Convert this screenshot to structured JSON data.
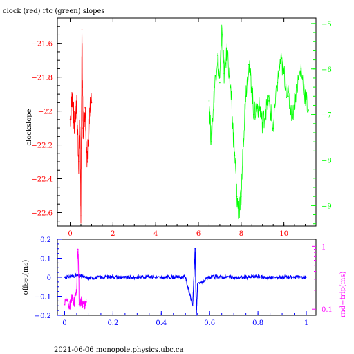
{
  "title": "clock (red) rtc (green) slopes",
  "footer": "2021-06-06  monopole.physics.ubc.ca",
  "colors": {
    "red": "#ff0000",
    "green": "#00ff00",
    "blue": "#0000ff",
    "magenta": "#ff00ff",
    "axis": "#000000"
  },
  "chart_data": [
    {
      "type": "line",
      "ylabel": "clockslope",
      "xlim": [
        -0.6,
        11.5
      ],
      "ylim": [
        -22.68,
        -21.45
      ],
      "x_ticks": [
        "0",
        "2",
        "4",
        "6",
        "8",
        "10"
      ],
      "left_ticks": [
        "-21.6",
        "-21.8",
        "-22",
        "-22.2",
        "-22.4",
        "-22.6"
      ],
      "right_ticks": [
        "-5",
        "-6",
        "-7",
        "-8",
        "-9"
      ],
      "right_ylim": [
        -9.45,
        -4.88
      ],
      "series": [
        {
          "color": "red",
          "axis": "left",
          "x": [
            0.0,
            0.1,
            0.2,
            0.3,
            0.4,
            0.45,
            0.5,
            0.55,
            0.6,
            0.7,
            0.8,
            0.9,
            1.0
          ],
          "y": [
            -22.05,
            -21.9,
            -22.1,
            -21.95,
            -22.3,
            -22.0,
            -22.62,
            -21.52,
            -22.1,
            -21.98,
            -22.3,
            -22.0,
            -21.95
          ]
        },
        {
          "color": "green",
          "axis": "right",
          "x": [
            6.5,
            6.6,
            6.75,
            6.9,
            7.0,
            7.1,
            7.2,
            7.35,
            7.5,
            7.6,
            7.7,
            7.8,
            7.9,
            8.0,
            8.1,
            8.2,
            8.35,
            8.5,
            8.6,
            8.75,
            8.9,
            9.0,
            9.15,
            9.3,
            9.5,
            9.7,
            9.85,
            10.0,
            10.2,
            10.4,
            10.6,
            10.8,
            11.0,
            11.15
          ],
          "y": [
            -6.7,
            -7.6,
            -6.4,
            -5.7,
            -6.3,
            -5.1,
            -6.1,
            -5.6,
            -6.4,
            -7.2,
            -7.9,
            -8.8,
            -9.2,
            -8.8,
            -7.6,
            -6.6,
            -5.9,
            -6.4,
            -7.0,
            -6.8,
            -6.9,
            -7.2,
            -6.9,
            -6.7,
            -7.3,
            -6.3,
            -5.8,
            -6.1,
            -6.6,
            -7.0,
            -6.4,
            -6.0,
            -6.6,
            -6.9
          ]
        }
      ]
    },
    {
      "type": "scatter",
      "ylabel": "offset(ms)",
      "right_ylabel": "rnd−trip(ms)",
      "xlim": [
        -0.03,
        1.04
      ],
      "ylim": [
        -0.2,
        0.2
      ],
      "x_ticks": [
        "0",
        "0.2",
        "0.4",
        "0.6",
        "0.8",
        "1"
      ],
      "left_ticks": [
        "0.2",
        "0.1",
        "0",
        "-0.1",
        "-0.2"
      ],
      "right_ticks": [
        "1",
        "0.1"
      ],
      "right_scale": "log",
      "right_ylim": [
        0.08,
        1.3
      ],
      "series": [
        {
          "color": "blue",
          "axis": "left",
          "x": [
            0.0,
            0.05,
            0.1,
            0.15,
            0.2,
            0.25,
            0.3,
            0.35,
            0.4,
            0.45,
            0.5,
            0.53,
            0.54,
            0.545,
            0.55,
            0.6,
            0.65,
            0.7,
            0.75,
            0.8,
            0.85,
            0.9,
            0.95,
            1.0
          ],
          "y": [
            0.0,
            0.01,
            -0.005,
            0.0,
            0.003,
            -0.002,
            0.0,
            0.004,
            -0.003,
            0.002,
            0.0,
            -0.15,
            0.15,
            -0.2,
            -0.04,
            0.0,
            0.003,
            -0.002,
            0.0,
            0.004,
            -0.003,
            0.002,
            0.0,
            0.001
          ]
        },
        {
          "color": "magenta",
          "axis": "right",
          "x": [
            0.0,
            0.01,
            0.02,
            0.03,
            0.04,
            0.05,
            0.055,
            0.06,
            0.07,
            0.08,
            0.09
          ],
          "y": [
            0.12,
            0.14,
            0.11,
            0.15,
            0.13,
            0.2,
            0.9,
            0.12,
            0.14,
            0.11,
            0.13
          ]
        }
      ]
    }
  ]
}
